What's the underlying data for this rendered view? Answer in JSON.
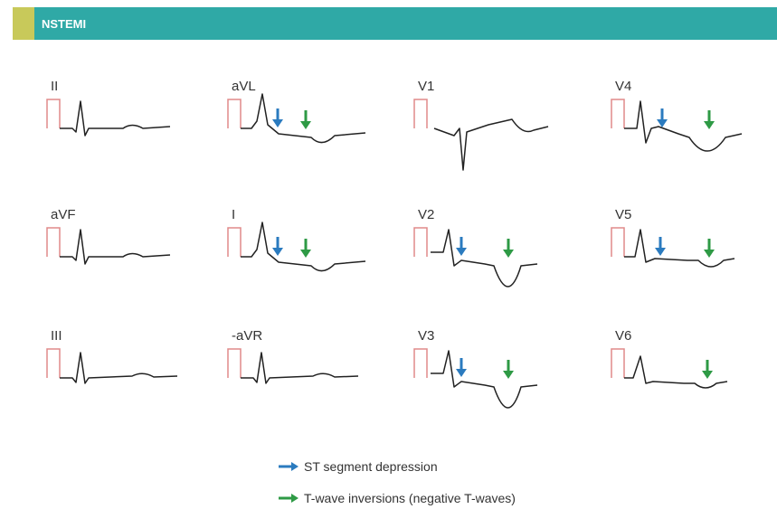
{
  "header": {
    "title": "NSTEMI"
  },
  "leads": [
    {
      "label": "II"
    },
    {
      "label": "aVL"
    },
    {
      "label": "V1"
    },
    {
      "label": "V4"
    },
    {
      "label": "aVF"
    },
    {
      "label": "I"
    },
    {
      "label": "V2"
    },
    {
      "label": "V5"
    },
    {
      "label": "III"
    },
    {
      "label": "-aVR"
    },
    {
      "label": "V3"
    },
    {
      "label": "V6"
    }
  ],
  "legend": [
    {
      "label": "ST segment depression"
    },
    {
      "label": "T-wave inversions (negative T-waves)"
    }
  ]
}
